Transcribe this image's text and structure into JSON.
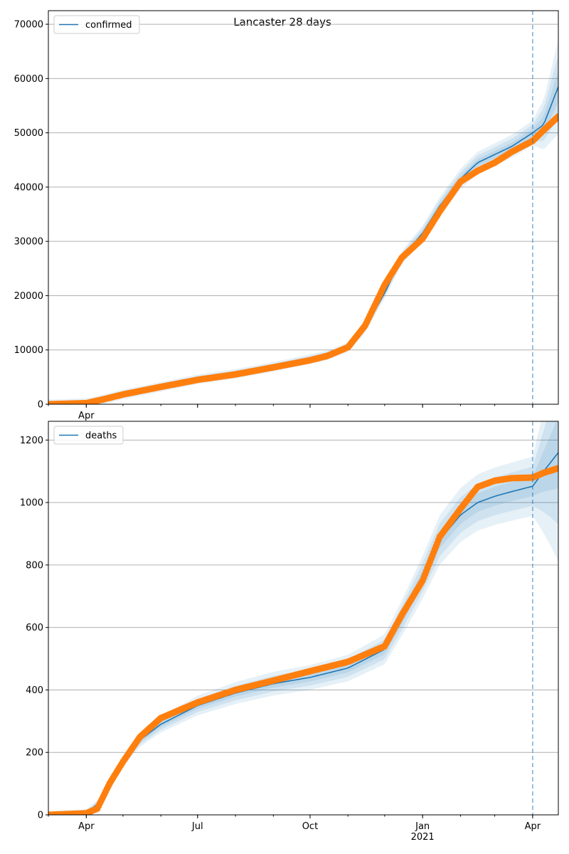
{
  "figure": {
    "title": "Lancaster 28 days"
  },
  "colors": {
    "model": "#1f77b4",
    "observed": "#ff7f0e",
    "band": "#1f77b4",
    "grid": "#b0b0b0",
    "vline": "#1f77b4"
  },
  "chart_data": [
    {
      "type": "line",
      "legend": [
        "confirmed"
      ],
      "legend_position": "upper-left",
      "grid": "horizontal",
      "xlim": [
        "2020-03-01",
        "2021-04-22"
      ],
      "ylim": [
        0,
        72500
      ],
      "yticks": [
        0,
        10000,
        20000,
        30000,
        40000,
        50000,
        60000,
        70000
      ],
      "xticks": [
        "2020-04-01",
        "2020-07-01",
        "2020-10-01",
        "2021-01-01",
        "2021-04-01"
      ],
      "xtick_labels": [
        "Apr",
        "",
        "",
        "",
        ""
      ],
      "forecast_start": "2021-04-01",
      "series": [
        {
          "name": "confirmed",
          "kind": "model",
          "x": [
            "2020-03-01",
            "2020-04-01",
            "2020-04-15",
            "2020-05-01",
            "2020-06-01",
            "2020-07-01",
            "2020-08-01",
            "2020-09-01",
            "2020-10-01",
            "2020-10-15",
            "2020-11-01",
            "2020-11-15",
            "2020-12-01",
            "2020-12-15",
            "2021-01-01",
            "2021-01-15",
            "2021-02-01",
            "2021-02-15",
            "2021-03-01",
            "2021-03-15",
            "2021-04-01",
            "2021-04-10",
            "2021-04-22"
          ],
          "y": [
            0,
            200,
            900,
            1800,
            3200,
            4600,
            5600,
            6900,
            8300,
            9000,
            10500,
            14000,
            20500,
            27000,
            31500,
            36500,
            41500,
            44500,
            46000,
            47500,
            50000,
            51500,
            58500
          ]
        },
        {
          "name": "observed",
          "kind": "observed",
          "x": [
            "2020-03-01",
            "2020-04-01",
            "2020-04-15",
            "2020-05-01",
            "2020-06-01",
            "2020-07-01",
            "2020-08-01",
            "2020-09-01",
            "2020-10-01",
            "2020-10-15",
            "2020-11-01",
            "2020-11-15",
            "2020-12-01",
            "2020-12-15",
            "2021-01-01",
            "2021-01-15",
            "2021-02-01",
            "2021-02-15",
            "2021-03-01",
            "2021-03-15",
            "2021-04-01",
            "2021-04-10",
            "2021-04-22"
          ],
          "y": [
            0,
            200,
            900,
            1800,
            3200,
            4500,
            5500,
            6800,
            8100,
            8900,
            10500,
            14500,
            22000,
            27000,
            30500,
            35500,
            41000,
            43000,
            44500,
            46500,
            48500,
            50500,
            53000
          ]
        }
      ]
    },
    {
      "type": "line",
      "legend": [
        "deaths"
      ],
      "legend_position": "upper-left",
      "grid": "horizontal",
      "xlim": [
        "2020-03-01",
        "2021-04-22"
      ],
      "ylim": [
        0,
        1260
      ],
      "yticks": [
        0,
        200,
        400,
        600,
        800,
        1000,
        1200
      ],
      "xticks": [
        "2020-04-01",
        "2020-07-01",
        "2020-10-01",
        "2021-01-01",
        "2021-04-01"
      ],
      "xtick_labels": [
        "Apr",
        "Jul",
        "Oct",
        "Jan",
        "Apr"
      ],
      "xtick_sublabel": "2021",
      "forecast_start": "2021-04-01",
      "series": [
        {
          "name": "deaths",
          "kind": "model",
          "x": [
            "2020-03-01",
            "2020-04-01",
            "2020-04-15",
            "2020-05-01",
            "2020-05-15",
            "2020-06-01",
            "2020-07-01",
            "2020-08-01",
            "2020-09-01",
            "2020-10-01",
            "2020-11-01",
            "2020-12-01",
            "2020-12-15",
            "2021-01-01",
            "2021-01-15",
            "2021-02-01",
            "2021-02-15",
            "2021-03-01",
            "2021-03-15",
            "2021-04-01",
            "2021-04-10",
            "2021-04-22"
          ],
          "y": [
            0,
            5,
            50,
            170,
            240,
            290,
            350,
            390,
            420,
            440,
            470,
            530,
            630,
            760,
            880,
            960,
            1000,
            1020,
            1035,
            1052,
            1100,
            1160
          ]
        },
        {
          "name": "observed",
          "kind": "observed",
          "x": [
            "2020-03-01",
            "2020-04-01",
            "2020-04-10",
            "2020-04-15",
            "2020-04-20",
            "2020-05-01",
            "2020-05-15",
            "2020-06-01",
            "2020-07-01",
            "2020-08-01",
            "2020-09-01",
            "2020-10-01",
            "2020-11-01",
            "2020-12-01",
            "2020-12-15",
            "2021-01-01",
            "2021-01-15",
            "2021-02-01",
            "2021-02-15",
            "2021-03-01",
            "2021-03-15",
            "2021-04-01",
            "2021-04-10",
            "2021-04-22"
          ],
          "y": [
            0,
            5,
            20,
            60,
            100,
            170,
            250,
            310,
            360,
            400,
            430,
            460,
            490,
            540,
            640,
            750,
            890,
            980,
            1050,
            1070,
            1078,
            1080,
            1095,
            1110
          ]
        }
      ]
    }
  ]
}
